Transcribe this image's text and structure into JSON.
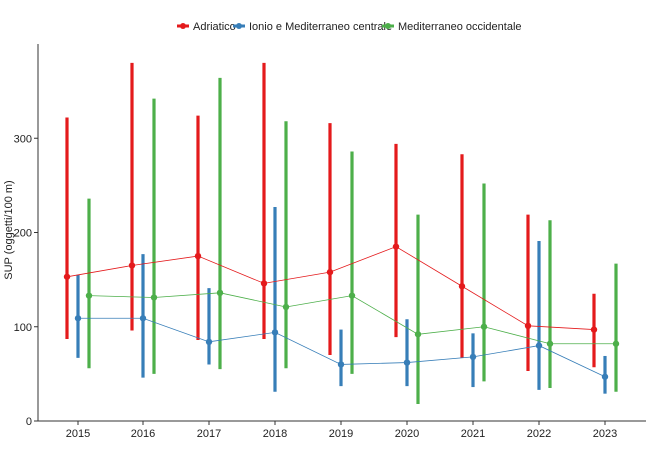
{
  "chart_data": {
    "type": "line",
    "title": "",
    "xlabel": "",
    "ylabel": "SUP (oggetti/100 m)",
    "categories": [
      "2015",
      "2016",
      "2017",
      "2018",
      "2019",
      "2020",
      "2021",
      "2022",
      "2023"
    ],
    "y_ticks": [
      0,
      100,
      200,
      300
    ],
    "ylim": [
      0,
      400
    ],
    "grid": false,
    "legend_position": "top",
    "series": [
      {
        "name": "Adriatico",
        "color": "#e41a1c",
        "values": [
          153,
          165,
          175,
          146,
          158,
          185,
          143,
          101,
          97
        ],
        "lower": [
          87,
          96,
          86,
          87,
          70,
          89,
          67,
          53,
          57
        ],
        "upper": [
          322,
          380,
          324,
          380,
          316,
          294,
          283,
          219,
          135
        ]
      },
      {
        "name": "Ionio e Mediterraneo centrale",
        "color": "#377eb8",
        "values": [
          109,
          109,
          84,
          94,
          60,
          62,
          68,
          80,
          47
        ],
        "lower": [
          67,
          46,
          60,
          31,
          37,
          37,
          36,
          33,
          29
        ],
        "upper": [
          155,
          177,
          141,
          227,
          97,
          108,
          93,
          191,
          69
        ]
      },
      {
        "name": "Mediterraneo occidentale",
        "color": "#4daf4a",
        "values": [
          133,
          131,
          136,
          121,
          133,
          92,
          100,
          82,
          82
        ],
        "lower": [
          56,
          50,
          55,
          56,
          50,
          18,
          42,
          35,
          31
        ],
        "upper": [
          236,
          342,
          364,
          318,
          286,
          219,
          252,
          213,
          167
        ]
      }
    ]
  }
}
